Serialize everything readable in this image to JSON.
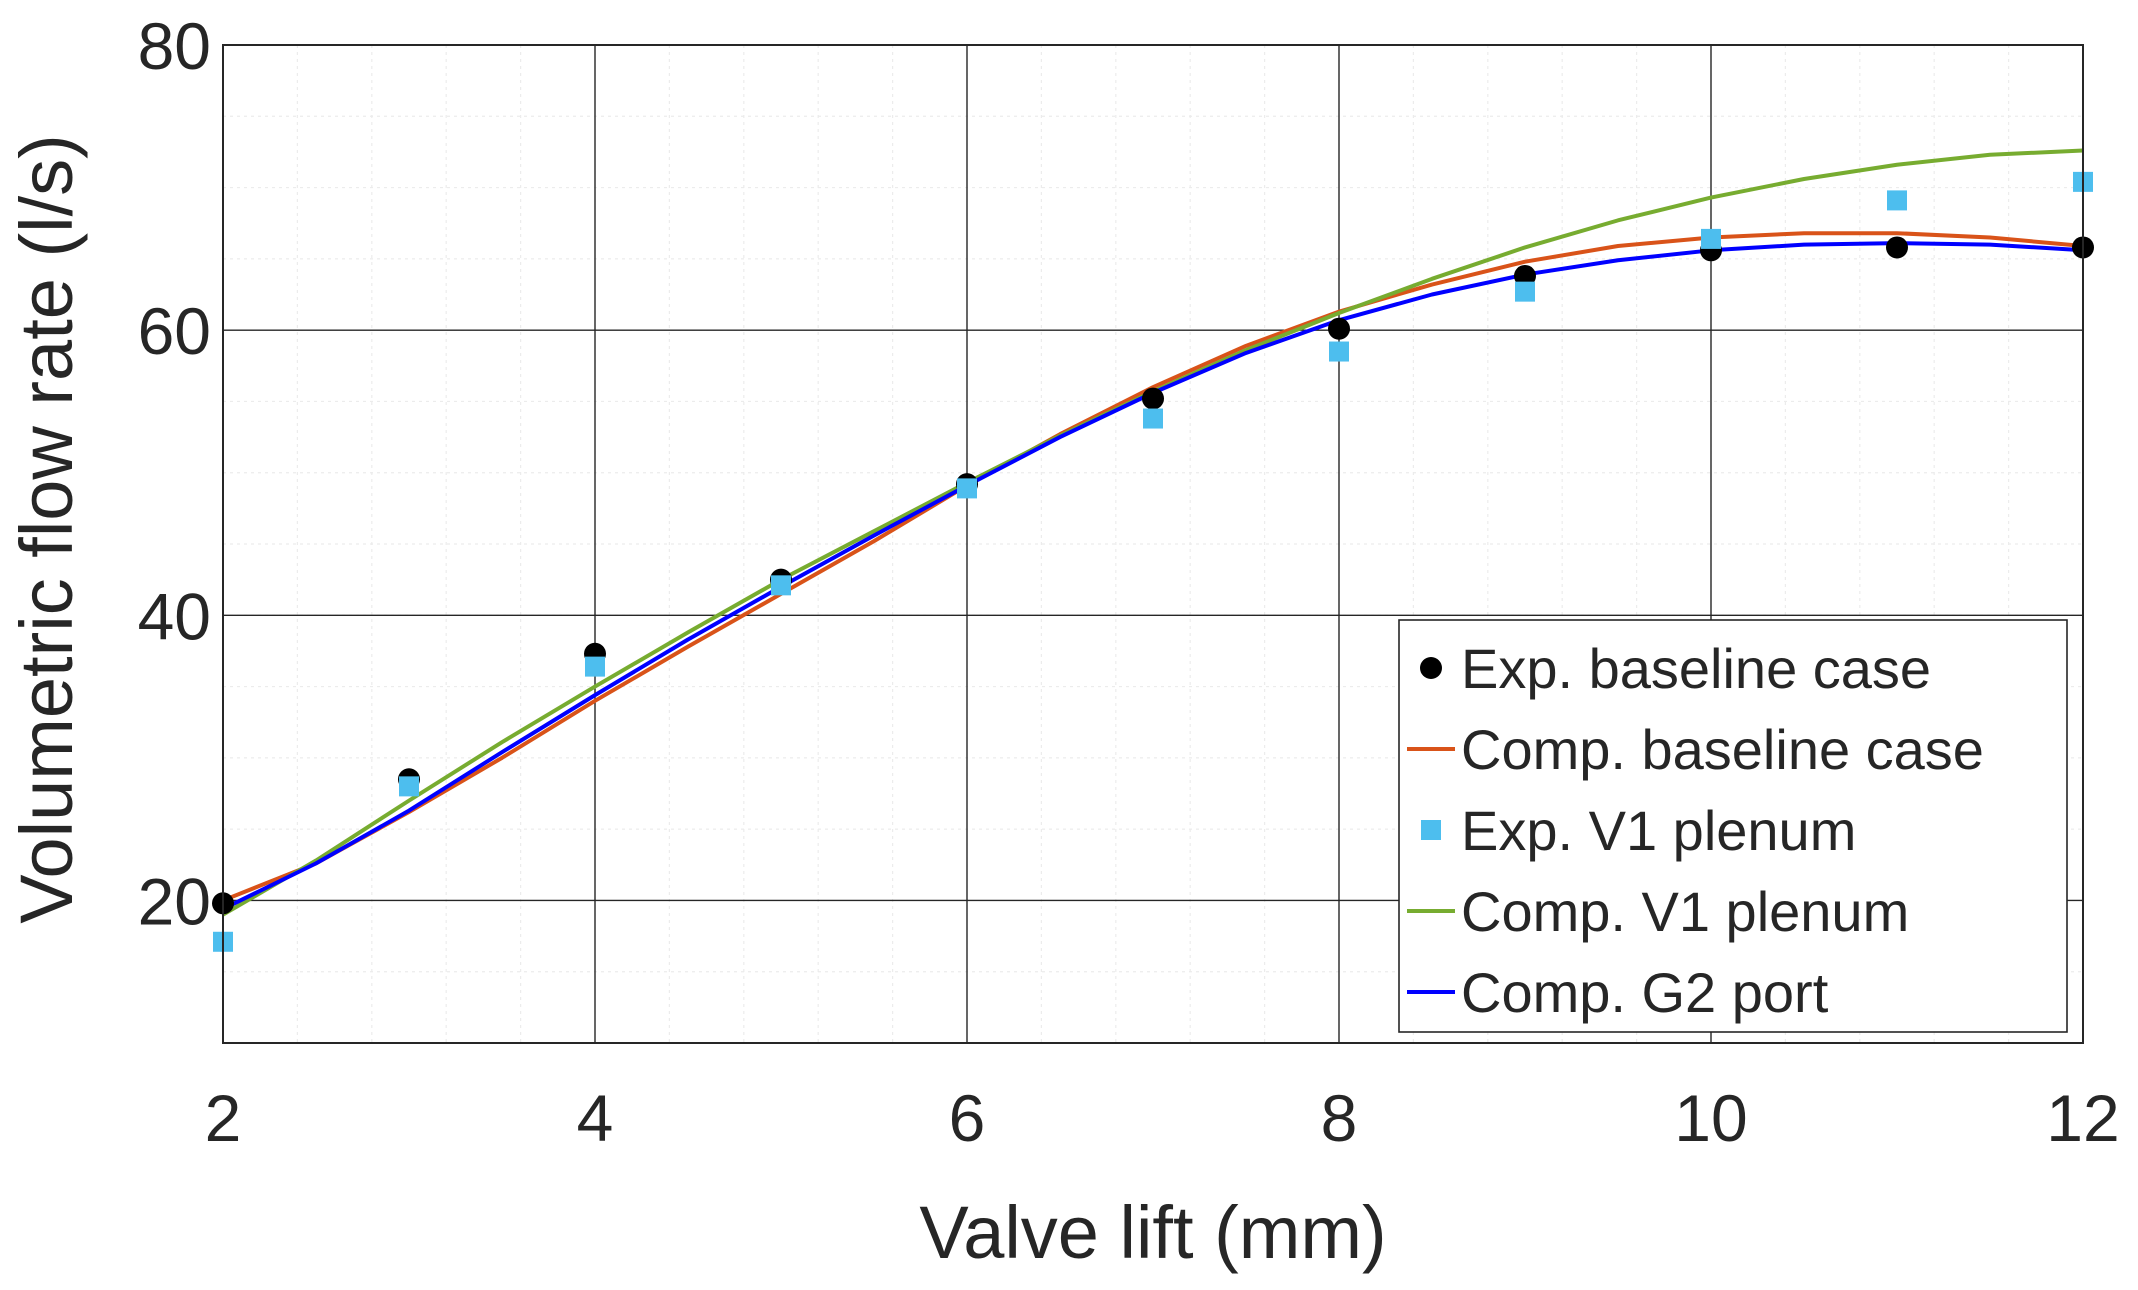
{
  "chart_data": {
    "type": "line",
    "title": "",
    "xlabel": "Valve lift (mm)",
    "ylabel": "Volumetric flow rate (l/s)",
    "xlim": [
      2,
      12
    ],
    "ylim": [
      10,
      80
    ],
    "xticks": [
      2,
      4,
      6,
      8,
      10,
      12
    ],
    "yticks": [
      20,
      40,
      60,
      80
    ],
    "grid": true,
    "minor_grid": true,
    "legend_position": "bottom-right",
    "series": [
      {
        "name": "Exp. baseline case",
        "kind": "scatter",
        "marker": "circle",
        "color": "#000000",
        "x": [
          2,
          3,
          4,
          5,
          6,
          7,
          8,
          9,
          10,
          11,
          12
        ],
        "y": [
          19.8,
          28.5,
          37.3,
          42.5,
          49.2,
          55.2,
          60.1,
          63.8,
          65.6,
          65.8,
          65.8
        ]
      },
      {
        "name": "Comp. baseline case",
        "kind": "line",
        "color": "#D95319",
        "x": [
          2,
          2.5,
          3,
          3.5,
          4,
          4.5,
          5,
          5.5,
          6,
          6.5,
          7,
          7.5,
          8,
          8.5,
          9,
          9.5,
          10,
          10.5,
          11,
          11.5,
          12
        ],
        "y": [
          20.0,
          22.6,
          26.2,
          30.0,
          34.0,
          37.8,
          41.5,
          45.2,
          49.1,
          52.7,
          56.0,
          58.9,
          61.3,
          63.2,
          64.8,
          65.9,
          66.5,
          66.8,
          66.8,
          66.5,
          65.9
        ]
      },
      {
        "name": "Exp. V1 plenum",
        "kind": "scatter",
        "marker": "square",
        "color": "#4DBEEE",
        "x": [
          2,
          3,
          4,
          5,
          6,
          7,
          8,
          9,
          10,
          11,
          12
        ],
        "y": [
          17.1,
          28.0,
          36.4,
          42.1,
          48.9,
          53.8,
          58.5,
          62.7,
          66.4,
          69.1,
          70.4
        ]
      },
      {
        "name": "Comp. V1 plenum",
        "kind": "line",
        "color": "#77AC30",
        "x": [
          2,
          2.5,
          3,
          3.5,
          4,
          4.5,
          5,
          5.5,
          6,
          6.5,
          7,
          7.5,
          8,
          8.5,
          9,
          9.5,
          10,
          10.5,
          11,
          11.5,
          12
        ],
        "y": [
          19.0,
          22.8,
          27.0,
          31.1,
          35.0,
          38.8,
          42.5,
          45.9,
          49.3,
          52.6,
          55.7,
          58.6,
          61.2,
          63.6,
          65.8,
          67.7,
          69.3,
          70.6,
          71.6,
          72.3,
          72.6
        ]
      },
      {
        "name": "Comp. G2 port",
        "kind": "line",
        "color": "#0000FF",
        "x": [
          2,
          2.5,
          3,
          3.5,
          4,
          4.5,
          5,
          5.5,
          6,
          6.5,
          7,
          7.5,
          8,
          8.5,
          9,
          9.5,
          10,
          10.5,
          11,
          11.5,
          12
        ],
        "y": [
          19.4,
          22.6,
          26.3,
          30.4,
          34.4,
          38.3,
          42.0,
          45.6,
          49.1,
          52.5,
          55.6,
          58.4,
          60.7,
          62.5,
          63.9,
          64.9,
          65.6,
          66.0,
          66.1,
          66.0,
          65.6
        ]
      }
    ]
  }
}
